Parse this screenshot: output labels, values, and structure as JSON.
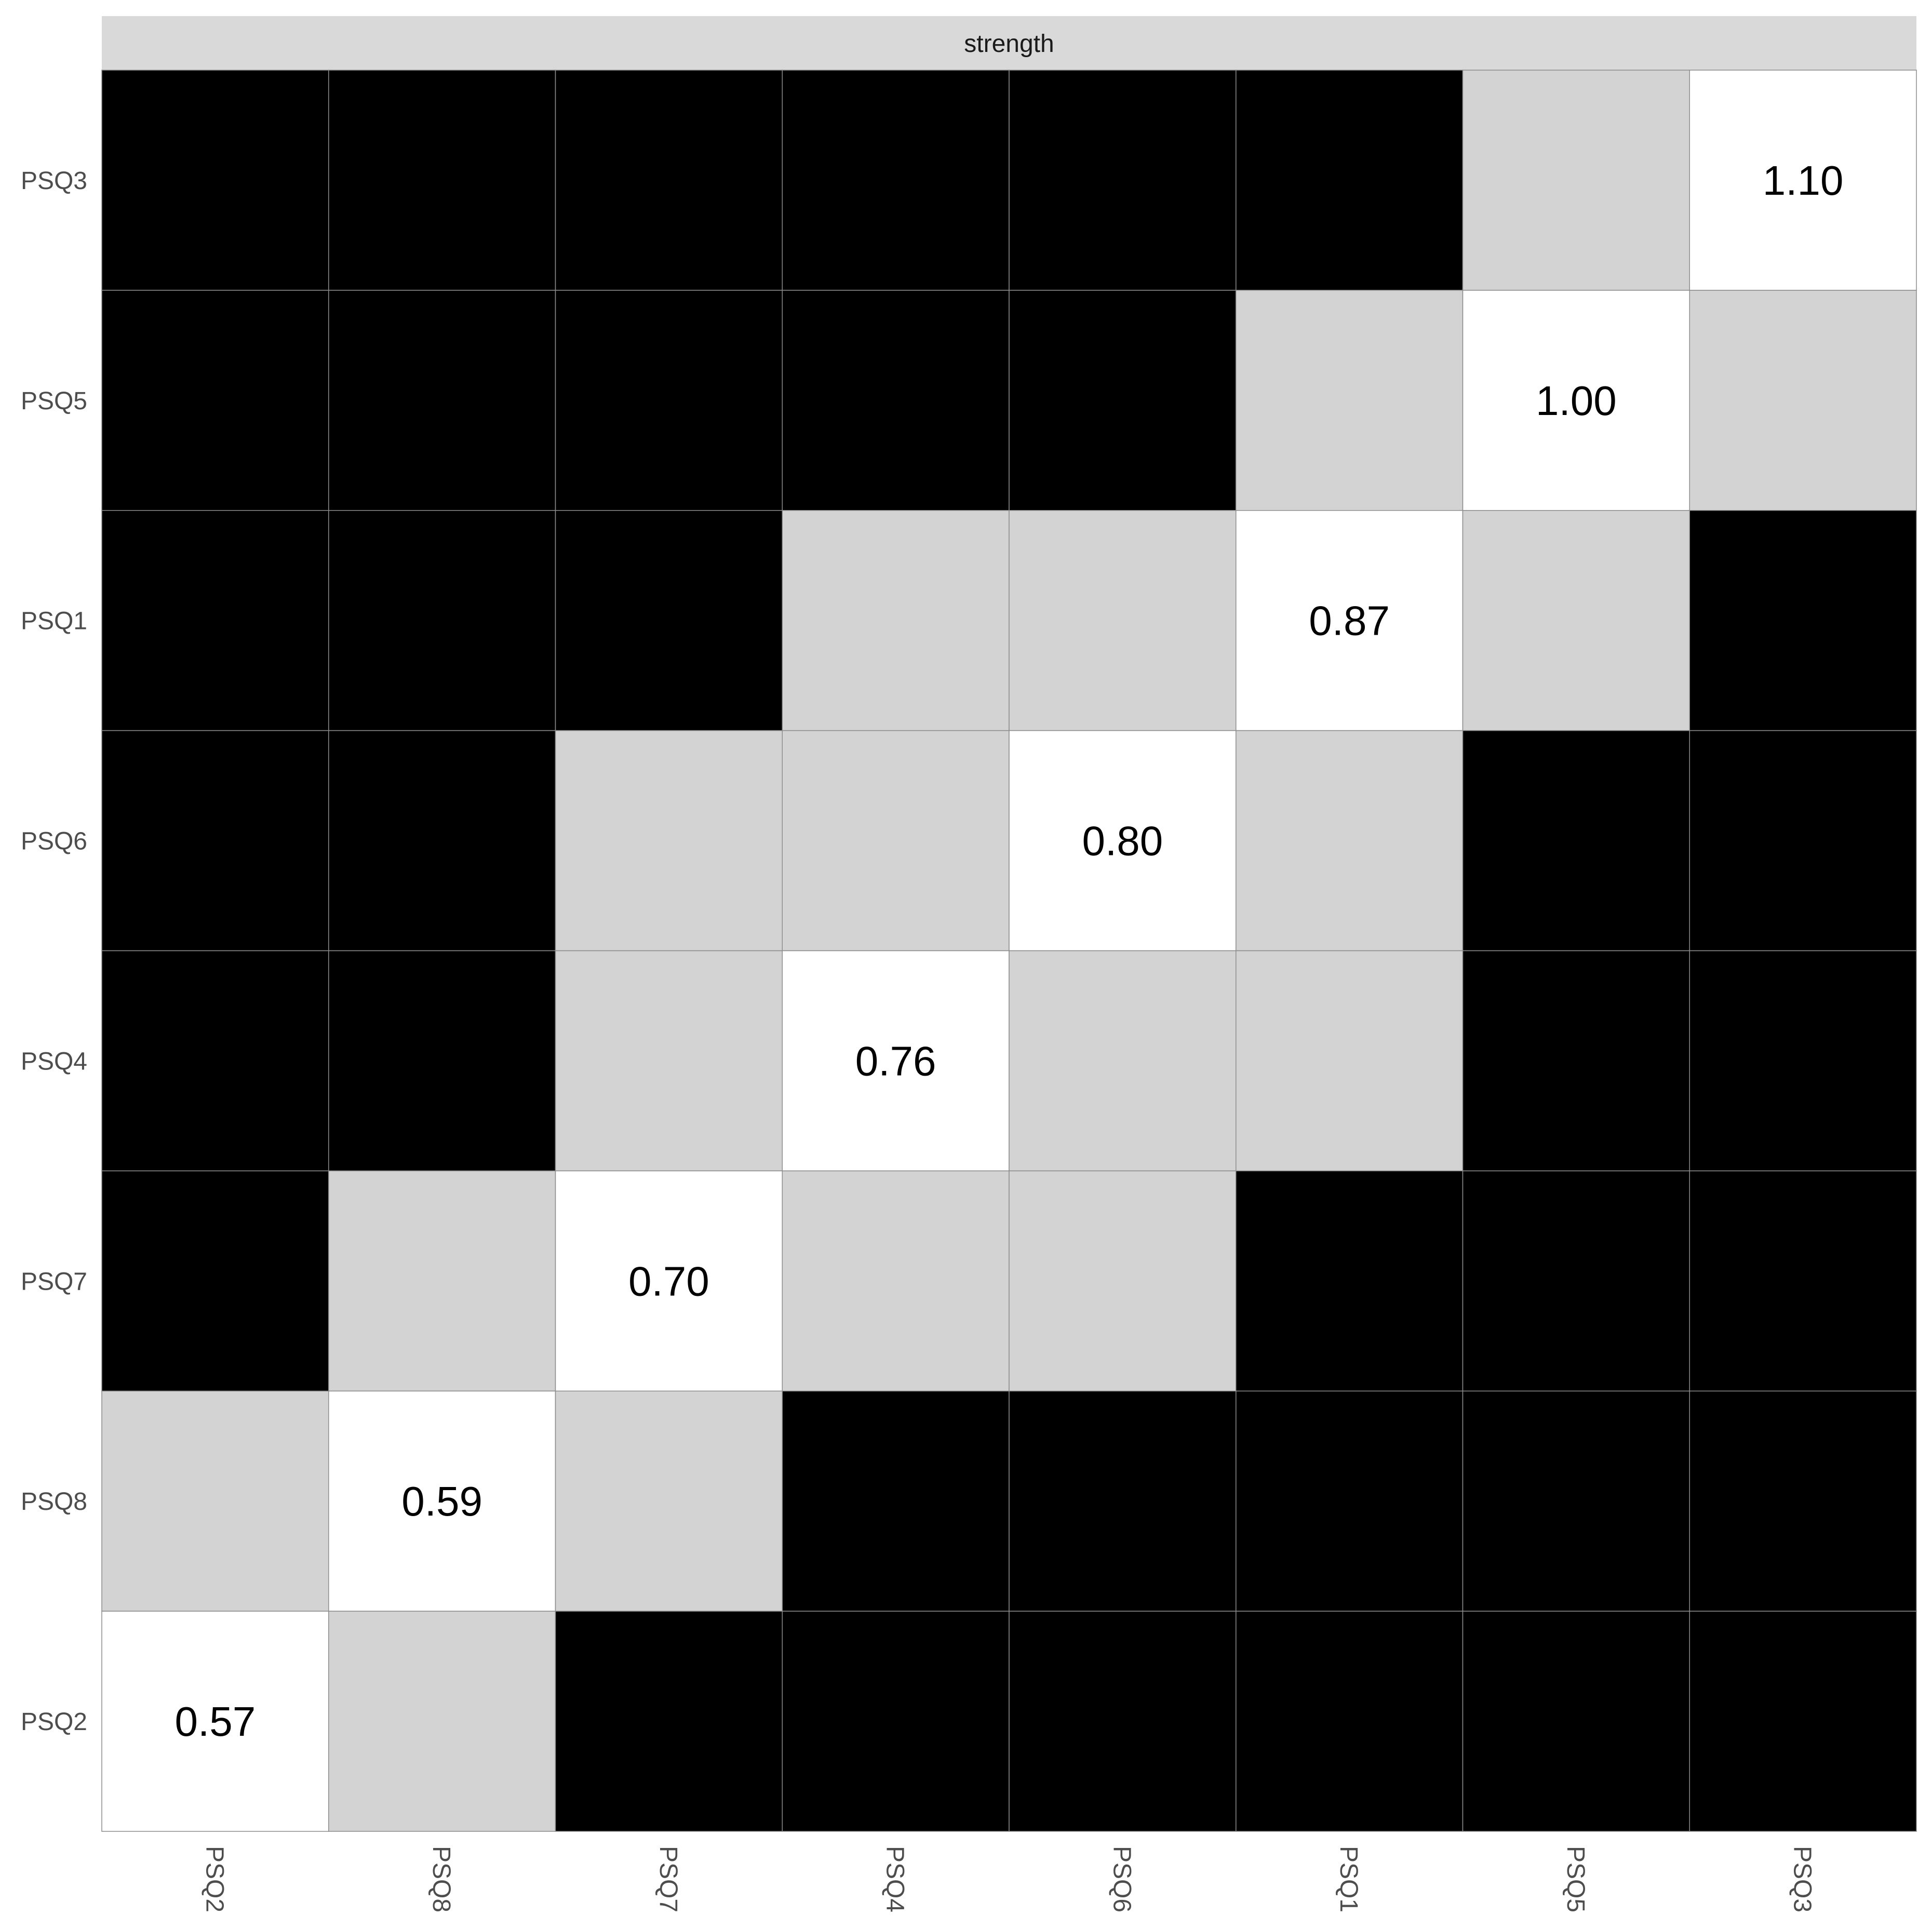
{
  "chart_data": {
    "type": "heatmap",
    "facet_label": "strength",
    "x_categories": [
      "PSQ2",
      "PSQ8",
      "PSQ7",
      "PSQ4",
      "PSQ6",
      "PSQ1",
      "PSQ5",
      "PSQ3"
    ],
    "y_categories_top_to_bottom": [
      "PSQ3",
      "PSQ5",
      "PSQ1",
      "PSQ6",
      "PSQ4",
      "PSQ7",
      "PSQ8",
      "PSQ2"
    ],
    "colors": {
      "diagonal": "#ffffff",
      "near": "#d3d3d3",
      "far": "#000000"
    },
    "cells": [
      [
        "far",
        "far",
        "far",
        "far",
        "far",
        "far",
        "near",
        "diagonal"
      ],
      [
        "far",
        "far",
        "far",
        "far",
        "far",
        "near",
        "diagonal",
        "near"
      ],
      [
        "far",
        "far",
        "far",
        "near",
        "near",
        "diagonal",
        "near",
        "far"
      ],
      [
        "far",
        "far",
        "near",
        "near",
        "diagonal",
        "near",
        "far",
        "far"
      ],
      [
        "far",
        "far",
        "near",
        "diagonal",
        "near",
        "near",
        "far",
        "far"
      ],
      [
        "far",
        "near",
        "diagonal",
        "near",
        "near",
        "far",
        "far",
        "far"
      ],
      [
        "near",
        "diagonal",
        "near",
        "far",
        "far",
        "far",
        "far",
        "far"
      ],
      [
        "diagonal",
        "near",
        "far",
        "far",
        "far",
        "far",
        "far",
        "far"
      ]
    ],
    "diagonal_values": [
      {
        "x": "PSQ3",
        "y": "PSQ3",
        "label": "1.10"
      },
      {
        "x": "PSQ5",
        "y": "PSQ5",
        "label": "1.00"
      },
      {
        "x": "PSQ1",
        "y": "PSQ1",
        "label": "0.87"
      },
      {
        "x": "PSQ6",
        "y": "PSQ6",
        "label": "0.80"
      },
      {
        "x": "PSQ4",
        "y": "PSQ4",
        "label": "0.76"
      },
      {
        "x": "PSQ7",
        "y": "PSQ7",
        "label": "0.70"
      },
      {
        "x": "PSQ8",
        "y": "PSQ8",
        "label": "0.59"
      },
      {
        "x": "PSQ2",
        "y": "PSQ2",
        "label": "0.57"
      }
    ]
  }
}
